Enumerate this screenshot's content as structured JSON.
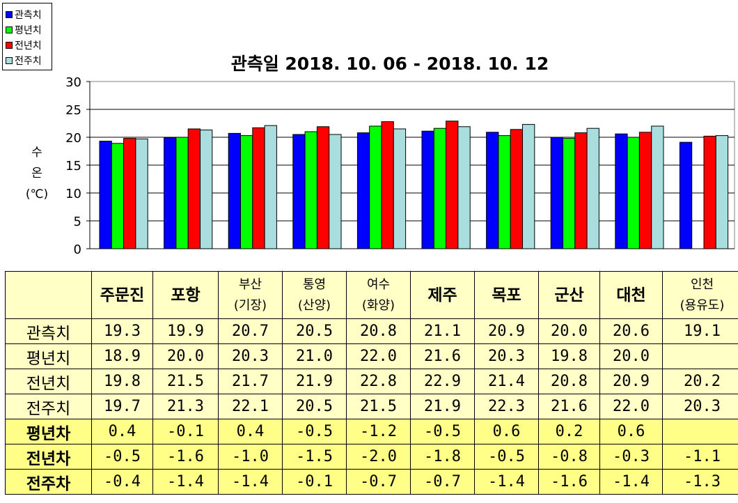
{
  "legend": [
    {
      "label": "관측치",
      "color": "#0000ff"
    },
    {
      "label": "평년치",
      "color": "#00ff00"
    },
    {
      "label": "전년치",
      "color": "#ff0000"
    },
    {
      "label": "전주치",
      "color": "#aadddd"
    }
  ],
  "chart_data": {
    "type": "bar",
    "title": "관측일 2018. 10. 06 - 2018. 10. 12",
    "ylabel": "수\n온\n(℃)",
    "ylim": [
      0,
      30
    ],
    "yticks": [
      0,
      5,
      10,
      15,
      20,
      25,
      30
    ],
    "grid": true,
    "legend_position": "top-left",
    "categories": [
      "주문진",
      "포항",
      "부산(기장)",
      "통영(산양)",
      "여수(화양)",
      "제주",
      "목포",
      "군산",
      "대천",
      "인천(용유도)"
    ],
    "series": [
      {
        "name": "관측치",
        "color": "#0000ff",
        "values": [
          19.3,
          19.9,
          20.7,
          20.5,
          20.8,
          21.1,
          20.9,
          20.0,
          20.6,
          19.1
        ]
      },
      {
        "name": "평년치",
        "color": "#00ff00",
        "values": [
          18.9,
          20.0,
          20.3,
          21.0,
          22.0,
          21.6,
          20.3,
          19.8,
          20.0,
          null
        ]
      },
      {
        "name": "전년치",
        "color": "#ff0000",
        "values": [
          19.8,
          21.5,
          21.7,
          21.9,
          22.8,
          22.9,
          21.4,
          20.8,
          20.9,
          20.2
        ]
      },
      {
        "name": "전주치",
        "color": "#aadddd",
        "values": [
          19.7,
          21.3,
          22.1,
          20.5,
          21.5,
          21.9,
          22.3,
          21.6,
          22.0,
          20.3
        ]
      }
    ]
  },
  "table": {
    "headers": [
      {
        "lines": [
          "주문진"
        ],
        "style": "big"
      },
      {
        "lines": [
          "포항"
        ],
        "style": "big"
      },
      {
        "lines": [
          "부산",
          "(기장)"
        ],
        "style": "small"
      },
      {
        "lines": [
          "통영",
          "(산양)"
        ],
        "style": "small"
      },
      {
        "lines": [
          "여수",
          "(화양)"
        ],
        "style": "small"
      },
      {
        "lines": [
          "제주"
        ],
        "style": "big"
      },
      {
        "lines": [
          "목포"
        ],
        "style": "big"
      },
      {
        "lines": [
          "군산"
        ],
        "style": "big"
      },
      {
        "lines": [
          "대천"
        ],
        "style": "big"
      },
      {
        "lines": [
          "인천",
          "(용유도)"
        ],
        "style": "small"
      }
    ],
    "rows": [
      {
        "label": "관측치",
        "bold": false,
        "diff": false,
        "values": [
          "19.3",
          "19.9",
          "20.7",
          "20.5",
          "20.8",
          "21.1",
          "20.9",
          "20.0",
          "20.6",
          "19.1"
        ]
      },
      {
        "label": "평년치",
        "bold": false,
        "diff": false,
        "values": [
          "18.9",
          "20.0",
          "20.3",
          "21.0",
          "22.0",
          "21.6",
          "20.3",
          "19.8",
          "20.0",
          ""
        ]
      },
      {
        "label": "전년치",
        "bold": false,
        "diff": false,
        "values": [
          "19.8",
          "21.5",
          "21.7",
          "21.9",
          "22.8",
          "22.9",
          "21.4",
          "20.8",
          "20.9",
          "20.2"
        ]
      },
      {
        "label": "전주치",
        "bold": false,
        "diff": false,
        "values": [
          "19.7",
          "21.3",
          "22.1",
          "20.5",
          "21.5",
          "21.9",
          "22.3",
          "21.6",
          "22.0",
          "20.3"
        ]
      },
      {
        "label": "평년차",
        "bold": true,
        "diff": true,
        "values": [
          "0.4",
          "-0.1",
          "0.4",
          "-0.5",
          "-1.2",
          "-0.5",
          "0.6",
          "0.2",
          "0.6",
          ""
        ]
      },
      {
        "label": "전년차",
        "bold": true,
        "diff": true,
        "values": [
          "-0.5",
          "-1.6",
          "-1.0",
          "-1.5",
          "-2.0",
          "-1.8",
          "-0.5",
          "-0.8",
          "-0.3",
          "-1.1"
        ]
      },
      {
        "label": "전주차",
        "bold": true,
        "diff": true,
        "values": [
          "-0.4",
          "-1.4",
          "-1.4",
          "-0.1",
          "-0.7",
          "-0.7",
          "-1.4",
          "-1.6",
          "-1.4",
          "-1.3"
        ]
      }
    ]
  }
}
